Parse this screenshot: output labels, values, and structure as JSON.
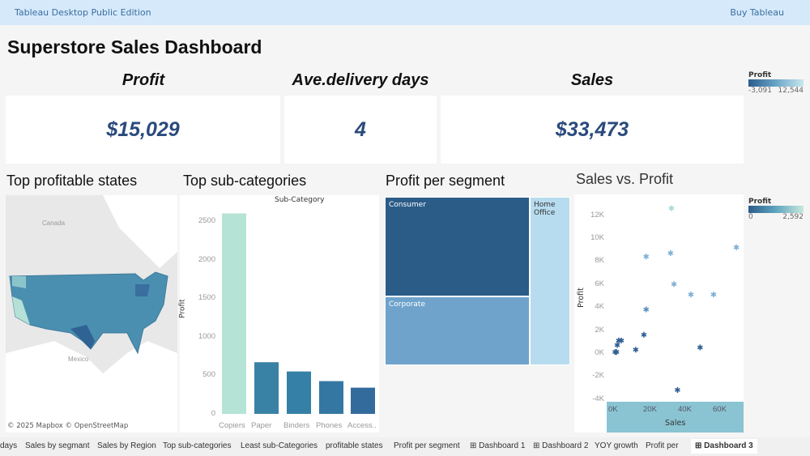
{
  "app": {
    "title": "Tableau Desktop Public Edition",
    "buy": "Buy Tableau"
  },
  "dashboard": {
    "title": "Superstore Sales Dashboard"
  },
  "kpis": [
    {
      "label": "Profit",
      "value": "$15,029"
    },
    {
      "label": "Ave.delivery days",
      "value": "4"
    },
    {
      "label": "Sales",
      "value": "$33,473"
    }
  ],
  "legend1": {
    "title": "Profit",
    "min": "-3,091",
    "max": "12,544"
  },
  "legend2": {
    "title": "Profit",
    "min": "0",
    "max": "2,592"
  },
  "sections": {
    "map": "Top profitable states",
    "bars": "Top sub-categories",
    "tree": "Profit per segment",
    "scatter": "Sales vs. Profit"
  },
  "map": {
    "labels": [
      "Canada",
      "Mexico"
    ],
    "attribution": "© 2025 Mapbox © OpenStreetMap"
  },
  "colors": {
    "dark": "#2a5c8a",
    "mid": "#4a8ab0",
    "light": "#b5e0d6",
    "accent": "#2a4a7d"
  },
  "chart_data": [
    {
      "type": "bar",
      "title": "Sub-Category",
      "ylabel": "Profit",
      "categories": [
        "Copiers",
        "Paper",
        "Binders",
        "Phones",
        "Access.."
      ],
      "values": [
        2600,
        670,
        550,
        425,
        340
      ],
      "yticks": [
        "0",
        "500",
        "1000",
        "1500",
        "2000",
        "2500"
      ],
      "ylim": [
        0,
        2600
      ]
    },
    {
      "type": "treemap",
      "items": [
        {
          "label": "Consumer"
        },
        {
          "label": "Corporate"
        },
        {
          "label": "Home Office"
        }
      ]
    },
    {
      "type": "scatter",
      "xlabel": "Sales",
      "ylabel": "Profit",
      "xticks": [
        "0K",
        "20K",
        "40K",
        "60K"
      ],
      "yticks": [
        "12K",
        "10K",
        "8K",
        "6K",
        "4K",
        "2K",
        "0K",
        "-2K",
        "-4K"
      ],
      "xlim": [
        0,
        72
      ],
      "ylim": [
        -4,
        12.8
      ],
      "points": [
        [
          32.5,
          12.6
        ],
        [
          69.8,
          9.2
        ],
        [
          18,
          8.4
        ],
        [
          32,
          8.7
        ],
        [
          34,
          6.0
        ],
        [
          43.7,
          5.1
        ],
        [
          56.7,
          5.1
        ],
        [
          18,
          3.8
        ],
        [
          16.7,
          1.6
        ],
        [
          2.3,
          1.1
        ],
        [
          3.7,
          1.1
        ],
        [
          1.4,
          0.7
        ],
        [
          0.2,
          0.1
        ],
        [
          1.0,
          0.1
        ],
        [
          12,
          0.3
        ],
        [
          49,
          0.5
        ],
        [
          36,
          -3.2
        ]
      ]
    }
  ],
  "tabs": [
    "days",
    "Sales by segmant",
    "Sales by Region",
    "Top sub-categories",
    "Least sub-Categories",
    "profitable states",
    "Profit per segment",
    "⊞ Dashboard 1",
    "⊞ Dashboard 2",
    "YOY growth",
    "Profit per",
    "⊞ Dashboard 3"
  ]
}
